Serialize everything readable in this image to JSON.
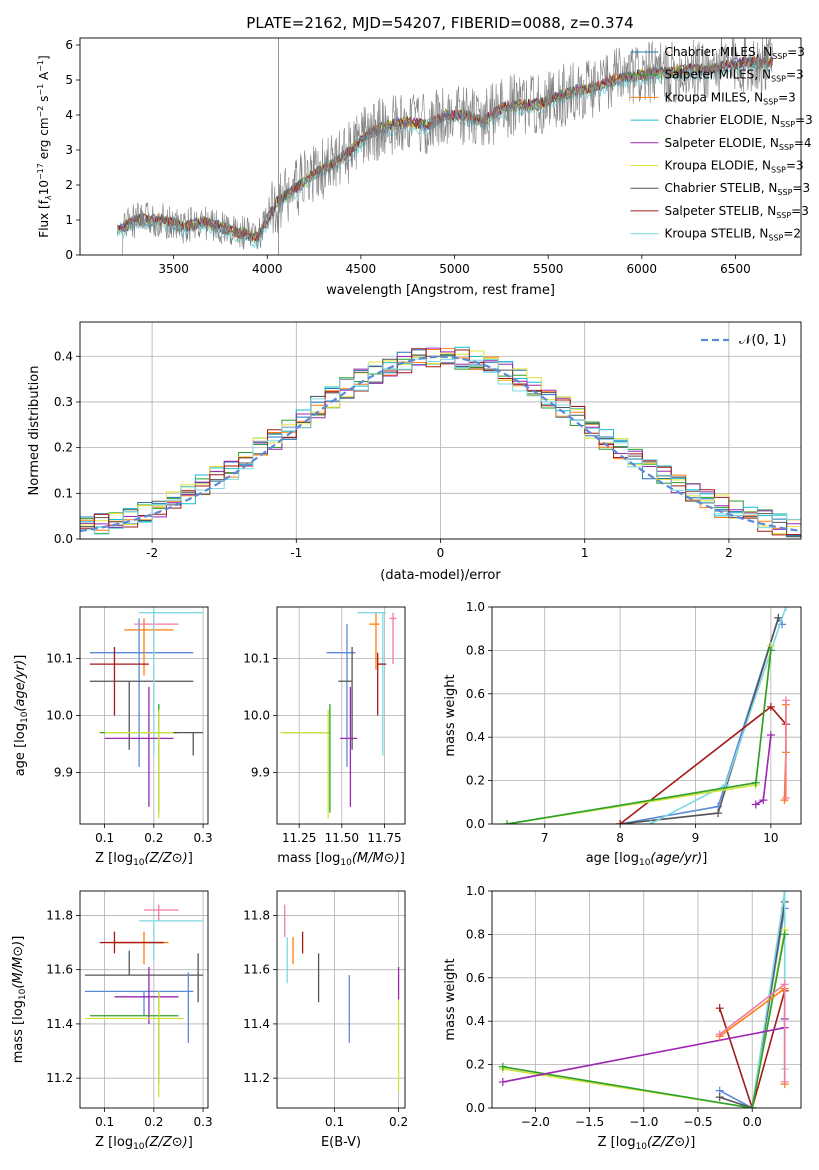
{
  "chart_data": [
    {
      "id": "spectrum",
      "type": "line",
      "title": "PLATE=2162, MJD=54207, FIBERID=0088, z=0.374",
      "xlabel": "wavelength [Angstrom, rest frame]",
      "ylabel_parts": [
        "Flux [f",
        "λ",
        "10",
        "−17",
        " erg cm",
        "−2",
        " s",
        "−1",
        " A",
        "−1",
        "]"
      ],
      "xlim": [
        3000,
        6850
      ],
      "ylim": [
        0,
        6.2
      ],
      "xticks": [
        3500,
        4000,
        4500,
        5000,
        5500,
        6000,
        6500
      ],
      "yticks": [
        0,
        1,
        2,
        3,
        4,
        5,
        6
      ],
      "legend_position": "top-right",
      "legend": [
        {
          "label": "Chabrier MILES, N",
          "sub": "SSP",
          "tail": "=3",
          "color": "#1f77b4"
        },
        {
          "label": "Salpeter MILES, N",
          "sub": "SSP",
          "tail": "=3",
          "color": "#2ca02c"
        },
        {
          "label": "Kroupa MILES, N",
          "sub": "SSP",
          "tail": "=3",
          "color": "#ff7f0e"
        },
        {
          "label": "Chabrier ELODIE, N",
          "sub": "SSP",
          "tail": "=3",
          "color": "#17becf"
        },
        {
          "label": "Salpeter ELODIE, N",
          "sub": "SSP",
          "tail": "=4",
          "color": "#9c27b0"
        },
        {
          "label": "Kroupa ELODIE, N",
          "sub": "SSP",
          "tail": "=3",
          "color": "#e6e33b"
        },
        {
          "label": "Chabrier STELIB, N",
          "sub": "SSP",
          "tail": "=3",
          "color": "#555555"
        },
        {
          "label": "Salpeter STELIB, N",
          "sub": "SSP",
          "tail": "=3",
          "color": "#a51919"
        },
        {
          "label": "Kroupa STELIB, N",
          "sub": "SSP",
          "tail": "=2",
          "color": "#7fd8e0"
        }
      ],
      "spectrum_continuum": {
        "x": [
          3200,
          3300,
          3450,
          3550,
          3650,
          3750,
          3850,
          3950,
          4050,
          4150,
          4250,
          4350,
          4450,
          4550,
          4650,
          4750,
          4850,
          4950,
          5050,
          5150,
          5250,
          5350,
          5450,
          5550,
          5650,
          5750,
          5850,
          5950,
          6050,
          6150,
          6250,
          6350,
          6450,
          6550,
          6650,
          6700
        ],
        "y": [
          0.7,
          1.0,
          1.0,
          0.8,
          0.95,
          0.8,
          0.65,
          0.5,
          1.5,
          1.9,
          2.3,
          2.6,
          3.0,
          3.5,
          3.7,
          3.8,
          3.7,
          4.0,
          4.0,
          3.8,
          4.2,
          4.3,
          4.3,
          4.5,
          4.7,
          4.8,
          5.0,
          5.1,
          5.2,
          5.2,
          5.3,
          5.3,
          5.4,
          5.5,
          5.5,
          5.5
        ]
      },
      "spectrum_color": "#7f7f7f"
    },
    {
      "id": "residuals",
      "type": "line",
      "xlabel": "(data-model)/error",
      "ylabel": "Normed distribution",
      "xlim": [
        -2.5,
        2.5
      ],
      "ylim": [
        0,
        0.475
      ],
      "xticks": [
        -2,
        -1,
        0,
        1,
        2
      ],
      "yticks": [
        0.0,
        0.1,
        0.2,
        0.3,
        0.4
      ],
      "grid": true,
      "legend_position": "top-right",
      "gaussian": {
        "label": "𝒩(0, 1)",
        "color": "#5b8bd8"
      },
      "bin_width": 0.1,
      "series_colors": [
        "#1f77b4",
        "#2ca02c",
        "#ff7f0e",
        "#17becf",
        "#9c27b0",
        "#e6e33b",
        "#555555",
        "#a51919",
        "#7fd8e0"
      ]
    },
    {
      "id": "age-vs-Z",
      "type": "scatter",
      "xlabel": "Z [log10(Z/Z⊙)]",
      "ylabel": "age  [log10(age/yr)]",
      "xlim": [
        0.05,
        0.31
      ],
      "ylim": [
        9.81,
        10.19
      ],
      "xticks": [
        0.1,
        0.2,
        0.3
      ],
      "yticks": [
        9.9,
        10.0,
        10.1
      ],
      "grid": true,
      "points": [
        {
          "x": 0.17,
          "y": 10.11,
          "xerr": [
            0.1,
            0.11
          ],
          "yerr": [
            0.2,
            0.06
          ],
          "color": "#5b8bd8"
        },
        {
          "x": 0.15,
          "y": 10.06,
          "xerr": [
            0.08,
            0.13
          ],
          "yerr": [
            0.12,
            0.0
          ],
          "color": "#555555"
        },
        {
          "x": 0.18,
          "y": 10.15,
          "xerr": [
            0.04,
            0.06
          ],
          "yerr": [
            0.08,
            0.02
          ],
          "color": "#ff7f0e"
        },
        {
          "x": 0.2,
          "y": 10.16,
          "xerr": [
            0.04,
            0.05
          ],
          "yerr": [
            0.06,
            0.02
          ],
          "color": "#f27ba1"
        },
        {
          "x": 0.2,
          "y": 10.18,
          "xerr": [
            0.03,
            0.1
          ],
          "yerr": [
            0.25,
            0.01
          ],
          "color": "#7fd8e0"
        },
        {
          "x": 0.12,
          "y": 10.09,
          "xerr": [
            0.05,
            0.07
          ],
          "yerr": [
            0.09,
            0.03
          ],
          "color": "#a51919"
        },
        {
          "x": 0.19,
          "y": 9.96,
          "xerr": [
            0.09,
            0.05
          ],
          "yerr": [
            0.12,
            0.09
          ],
          "color": "#9c27b0"
        },
        {
          "x": 0.21,
          "y": 9.97,
          "xerr": [
            0.12,
            0.04
          ],
          "yerr": [
            0.14,
            0.05
          ],
          "color": "#2ca02c"
        },
        {
          "x": 0.21,
          "y": 9.97,
          "xerr": [
            0.11,
            0.03
          ],
          "yerr": [
            0.15,
            0.04
          ],
          "color": "#cfe33b"
        },
        {
          "x": 0.28,
          "y": 9.97,
          "xerr": [
            0.04,
            0.02
          ],
          "yerr": [
            0.04,
            0.0
          ],
          "color": "#555555"
        }
      ]
    },
    {
      "id": "age-vs-mass",
      "type": "scatter",
      "xlabel": "mass [log10(M/M⊙)]",
      "ylabel": "",
      "xlim": [
        11.12,
        11.87
      ],
      "ylim": [
        9.81,
        10.19
      ],
      "xticks": [
        11.25,
        11.5,
        11.75
      ],
      "xticklabels": [
        "11.25",
        "11.50",
        "11.75"
      ],
      "yticks": [
        9.9,
        10.0,
        10.1
      ],
      "grid": true,
      "points": [
        {
          "x": 11.53,
          "y": 10.11,
          "xerr": [
            0.12,
            0.05
          ],
          "yerr": [
            0.2,
            0.05
          ],
          "color": "#5b8bd8"
        },
        {
          "x": 11.56,
          "y": 10.06,
          "xerr": [
            0.08,
            0.0
          ],
          "yerr": [
            0.12,
            0.06
          ],
          "color": "#555555"
        },
        {
          "x": 11.7,
          "y": 10.16,
          "xerr": [
            0.04,
            0.02
          ],
          "yerr": [
            0.08,
            0.02
          ],
          "color": "#ff7f0e"
        },
        {
          "x": 11.8,
          "y": 10.17,
          "xerr": [
            0.02,
            0.02
          ],
          "yerr": [
            0.08,
            0.01
          ],
          "color": "#f27ba1"
        },
        {
          "x": 11.74,
          "y": 10.18,
          "xerr": [
            0.15,
            0.02
          ],
          "yerr": [
            0.25,
            0.0
          ],
          "color": "#7fd8e0"
        },
        {
          "x": 11.71,
          "y": 10.09,
          "xerr": [
            0.0,
            0.05
          ],
          "yerr": [
            0.09,
            0.02
          ],
          "color": "#a51919"
        },
        {
          "x": 11.55,
          "y": 9.96,
          "xerr": [
            0.06,
            0.04
          ],
          "yerr": [
            0.12,
            0.09
          ],
          "color": "#9c27b0"
        },
        {
          "x": 11.43,
          "y": 9.97,
          "xerr": [
            0.28,
            0.0
          ],
          "yerr": [
            0.14,
            0.05
          ],
          "color": "#2ca02c"
        },
        {
          "x": 11.42,
          "y": 9.97,
          "xerr": [
            0.28,
            0.0
          ],
          "yerr": [
            0.15,
            0.04
          ],
          "color": "#cfe33b"
        }
      ]
    },
    {
      "id": "weight-vs-age",
      "type": "line",
      "xlabel": "age  [log10(age/yr)]",
      "ylabel": "mass weight",
      "xlim": [
        6.3,
        10.4
      ],
      "ylim": [
        0,
        1.0
      ],
      "xticks": [
        7,
        8,
        9,
        10
      ],
      "yticks": [
        0.0,
        0.2,
        0.4,
        0.6,
        0.8,
        1.0
      ],
      "grid": true,
      "series": [
        {
          "color": "#5b8bd8",
          "x": [
            8.0,
            9.3,
            10.1,
            10.15
          ],
          "y": [
            0.0,
            0.08,
            0.95,
            0.92
          ]
        },
        {
          "color": "#555555",
          "x": [
            8.0,
            9.3,
            10.1
          ],
          "y": [
            0.0,
            0.05,
            0.95
          ]
        },
        {
          "color": "#7fd8e0",
          "x": [
            8.4,
            9.4,
            10.2
          ],
          "y": [
            0.0,
            0.18,
            1.0
          ]
        },
        {
          "color": "#a51919",
          "x": [
            8.0,
            10.0,
            10.2
          ],
          "y": [
            0.0,
            0.54,
            0.46
          ]
        },
        {
          "color": "#cfe33b",
          "x": [
            6.5,
            9.8,
            10.0
          ],
          "y": [
            0.0,
            0.18,
            0.82
          ]
        },
        {
          "color": "#2ca02c",
          "x": [
            6.5,
            9.8,
            10.0
          ],
          "y": [
            0.0,
            0.19,
            0.8
          ]
        },
        {
          "color": "#9c27b0",
          "x": [
            9.8,
            9.9,
            10.0
          ],
          "y": [
            0.09,
            0.11,
            0.41
          ]
        },
        {
          "color": "#ff7f0e",
          "x": [
            10.18,
            10.2,
            10.2
          ],
          "y": [
            0.11,
            0.33,
            0.55
          ]
        },
        {
          "color": "#f27ba1",
          "x": [
            10.2,
            10.2
          ],
          "y": [
            0.12,
            0.57
          ]
        }
      ]
    },
    {
      "id": "mass-vs-Z",
      "type": "scatter",
      "xlabel": "Z [log10(Z/Z⊙)]",
      "ylabel": "mass [log10(M/M⊙)]",
      "xlim": [
        0.05,
        0.31
      ],
      "ylim": [
        11.09,
        11.89
      ],
      "xticks": [
        0.1,
        0.2,
        0.3
      ],
      "yticks": [
        11.2,
        11.4,
        11.6,
        11.8
      ],
      "grid": true,
      "points": [
        {
          "x": 0.18,
          "y": 11.52,
          "xerr": [
            0.12,
            0.1
          ],
          "yerr": [
            0.09,
            0.0
          ],
          "color": "#5b8bd8"
        },
        {
          "x": 0.15,
          "y": 11.58,
          "xerr": [
            0.09,
            0.15
          ],
          "yerr": [
            0.0,
            0.09
          ],
          "color": "#555555"
        },
        {
          "x": 0.18,
          "y": 11.7,
          "xerr": [
            0.06,
            0.05
          ],
          "yerr": [
            0.08,
            0.04
          ],
          "color": "#ff7f0e"
        },
        {
          "x": 0.21,
          "y": 11.82,
          "xerr": [
            0.03,
            0.04
          ],
          "yerr": [
            0.04,
            0.02
          ],
          "color": "#f27ba1"
        },
        {
          "x": 0.2,
          "y": 11.78,
          "xerr": [
            0.03,
            0.1
          ],
          "yerr": [
            0.15,
            0.0
          ],
          "color": "#7fd8e0"
        },
        {
          "x": 0.12,
          "y": 11.7,
          "xerr": [
            0.03,
            0.1
          ],
          "yerr": [
            0.04,
            0.04
          ],
          "color": "#a51919"
        },
        {
          "x": 0.19,
          "y": 11.5,
          "xerr": [
            0.07,
            0.06
          ],
          "yerr": [
            0.1,
            0.11
          ],
          "color": "#9c27b0"
        },
        {
          "x": 0.21,
          "y": 11.43,
          "xerr": [
            0.14,
            0.04
          ],
          "yerr": [
            0.25,
            0.09
          ],
          "color": "#2ca02c"
        },
        {
          "x": 0.21,
          "y": 11.42,
          "xerr": [
            0.15,
            0.05
          ],
          "yerr": [
            0.29,
            0.1
          ],
          "color": "#cfe33b"
        },
        {
          "x": 0.27,
          "y": 11.53,
          "xerr": [
            0.0,
            0.0
          ],
          "yerr": [
            0.2,
            0.06
          ],
          "color": "#5b8bd8"
        },
        {
          "x": 0.29,
          "y": 11.58,
          "xerr": [
            0.0,
            0.0
          ],
          "yerr": [
            0.1,
            0.08
          ],
          "color": "#555555"
        }
      ]
    },
    {
      "id": "mass-vs-EBV",
      "type": "scatter",
      "xlabel": "E(B-V)",
      "ylabel": "",
      "xlim": [
        0.01,
        0.21
      ],
      "ylim": [
        11.09,
        11.89
      ],
      "xticks": [
        0.1,
        0.2
      ],
      "yticks": [
        11.2,
        11.4,
        11.6,
        11.8
      ],
      "grid": true,
      "points": [
        {
          "x": 0.123,
          "y": 11.52,
          "xerr": [
            0,
            0
          ],
          "yerr": [
            0.19,
            0.06
          ],
          "color": "#5b8bd8"
        },
        {
          "x": 0.075,
          "y": 11.58,
          "xerr": [
            0,
            0
          ],
          "yerr": [
            0.1,
            0.08
          ],
          "color": "#555555"
        },
        {
          "x": 0.035,
          "y": 11.66,
          "xerr": [
            0,
            0
          ],
          "yerr": [
            0.04,
            0.06
          ],
          "color": "#ff7f0e"
        },
        {
          "x": 0.022,
          "y": 11.78,
          "xerr": [
            0,
            0
          ],
          "yerr": [
            0.06,
            0.06
          ],
          "color": "#f27ba1"
        },
        {
          "x": 0.026,
          "y": 11.65,
          "xerr": [
            0,
            0
          ],
          "yerr": [
            0.1,
            0.07
          ],
          "color": "#7fd8e0"
        },
        {
          "x": 0.05,
          "y": 11.7,
          "xerr": [
            0,
            0
          ],
          "yerr": [
            0.04,
            0.04
          ],
          "color": "#a51919"
        },
        {
          "x": 0.2,
          "y": 11.55,
          "xerr": [
            0,
            0
          ],
          "yerr": [
            0.06,
            0.06
          ],
          "color": "#9c27b0"
        },
        {
          "x": 0.2,
          "y": 11.35,
          "xerr": [
            0,
            0
          ],
          "yerr": [
            0.2,
            0.14
          ],
          "color": "#cfe33b"
        }
      ]
    },
    {
      "id": "weight-vs-Z",
      "type": "line",
      "xlabel": "Z [log10(Z/Z⊙)]",
      "ylabel": "mass weight",
      "xlim": [
        -2.4,
        0.45
      ],
      "ylim": [
        0,
        1.0
      ],
      "xticks": [
        -2.0,
        -1.5,
        -1.0,
        -0.5,
        0.0
      ],
      "xticklabels": [
        "−2.0",
        "−1.5",
        "−1.0",
        "−0.5",
        "0.0"
      ],
      "yticks": [
        0.0,
        0.2,
        0.4,
        0.6,
        0.8,
        1.0
      ],
      "grid": true,
      "series": [
        {
          "color": "#5b8bd8",
          "x": [
            -0.3,
            0.0,
            0.3
          ],
          "y": [
            0.08,
            0.0,
            0.92
          ]
        },
        {
          "color": "#555555",
          "x": [
            -0.3,
            0.0,
            0.3
          ],
          "y": [
            0.05,
            0.0,
            0.95
          ]
        },
        {
          "color": "#7fd8e0",
          "x": [
            0.0,
            0.3,
            0.3
          ],
          "y": [
            0.0,
            1.0,
            0.18
          ]
        },
        {
          "color": "#a51919",
          "x": [
            -0.3,
            0.0,
            0.3
          ],
          "y": [
            0.46,
            0.0,
            0.54
          ]
        },
        {
          "color": "#cfe33b",
          "x": [
            -2.3,
            0.0,
            0.3
          ],
          "y": [
            0.18,
            0.0,
            0.82
          ]
        },
        {
          "color": "#2ca02c",
          "x": [
            -2.3,
            0.0,
            0.3
          ],
          "y": [
            0.19,
            0.0,
            0.8
          ]
        },
        {
          "color": "#9c27b0",
          "x": [
            -2.3,
            0.3,
            0.3
          ],
          "y": [
            0.12,
            0.37,
            0.41
          ]
        },
        {
          "color": "#ff7f0e",
          "x": [
            -0.3,
            0.3,
            0.3
          ],
          "y": [
            0.33,
            0.55,
            0.11
          ]
        },
        {
          "color": "#f27ba1",
          "x": [
            -0.3,
            0.3,
            0.3
          ],
          "y": [
            0.34,
            0.57,
            0.12
          ]
        }
      ]
    }
  ]
}
